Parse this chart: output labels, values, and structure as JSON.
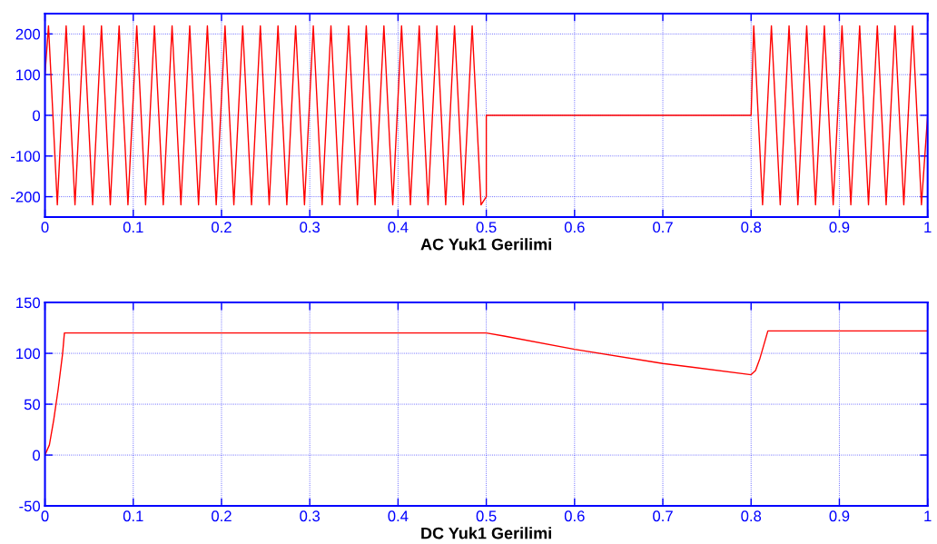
{
  "chart_data": [
    {
      "type": "line",
      "xlabel": "AC Yuk1 Gerilimi",
      "xlim": [
        0,
        1
      ],
      "ylim": [
        -250,
        250
      ],
      "xticks": [
        0,
        0.1,
        0.2,
        0.3,
        0.4,
        0.5,
        0.6,
        0.7,
        0.8,
        0.9,
        1
      ],
      "yticks": [
        -200,
        -100,
        0,
        100,
        200
      ],
      "grid": true,
      "x": [
        0,
        0.004,
        0.009,
        0.014,
        0.019,
        0.024,
        0.029,
        0.034,
        0.039,
        0.044,
        0.049,
        0.054,
        0.059,
        0.064,
        0.069,
        0.074,
        0.079,
        0.084,
        0.089,
        0.094,
        0.099,
        0.104,
        0.109,
        0.114,
        0.119,
        0.124,
        0.129,
        0.134,
        0.139,
        0.144,
        0.149,
        0.154,
        0.159,
        0.164,
        0.169,
        0.174,
        0.179,
        0.184,
        0.189,
        0.194,
        0.199,
        0.204,
        0.209,
        0.214,
        0.219,
        0.224,
        0.229,
        0.234,
        0.239,
        0.244,
        0.249,
        0.254,
        0.259,
        0.264,
        0.269,
        0.274,
        0.279,
        0.284,
        0.289,
        0.294,
        0.299,
        0.304,
        0.309,
        0.314,
        0.319,
        0.324,
        0.329,
        0.334,
        0.339,
        0.344,
        0.349,
        0.354,
        0.359,
        0.364,
        0.369,
        0.374,
        0.379,
        0.384,
        0.389,
        0.394,
        0.399,
        0.404,
        0.409,
        0.414,
        0.419,
        0.424,
        0.429,
        0.434,
        0.439,
        0.444,
        0.449,
        0.454,
        0.459,
        0.464,
        0.469,
        0.474,
        0.479,
        0.484,
        0.489,
        0.494,
        0.5,
        0.5,
        0.8,
        0.803,
        0.808,
        0.813,
        0.818,
        0.823,
        0.828,
        0.833,
        0.838,
        0.843,
        0.848,
        0.853,
        0.858,
        0.863,
        0.868,
        0.873,
        0.878,
        0.883,
        0.888,
        0.893,
        0.898,
        0.903,
        0.908,
        0.913,
        0.918,
        0.923,
        0.928,
        0.933,
        0.938,
        0.943,
        0.948,
        0.953,
        0.958,
        0.963,
        0.968,
        0.973,
        0.978,
        0.983,
        0.988,
        0.993,
        1
      ],
      "series": [
        {
          "color": "#ff0000",
          "values": [
            100,
            220,
            0,
            -220,
            0,
            220,
            0,
            -220,
            0,
            220,
            0,
            -220,
            0,
            220,
            0,
            -220,
            0,
            220,
            0,
            -220,
            0,
            220,
            0,
            -220,
            0,
            220,
            0,
            -220,
            0,
            220,
            0,
            -220,
            0,
            220,
            0,
            -220,
            0,
            220,
            0,
            -220,
            0,
            220,
            0,
            -220,
            0,
            220,
            0,
            -220,
            0,
            220,
            0,
            -220,
            0,
            220,
            0,
            -220,
            0,
            220,
            0,
            -220,
            0,
            220,
            0,
            -220,
            0,
            220,
            0,
            -220,
            0,
            220,
            0,
            -220,
            0,
            220,
            0,
            -220,
            0,
            220,
            0,
            -220,
            0,
            220,
            0,
            -220,
            0,
            220,
            0,
            -220,
            0,
            220,
            0,
            -220,
            0,
            220,
            0,
            -220,
            0,
            220,
            0,
            -220,
            -200,
            0,
            0,
            220,
            0,
            -220,
            0,
            220,
            0,
            -220,
            0,
            220,
            0,
            -220,
            0,
            220,
            0,
            -220,
            0,
            220,
            0,
            -220,
            0,
            220,
            0,
            -220,
            0,
            220,
            0,
            -220,
            0,
            220,
            0,
            -220,
            0,
            220,
            0,
            -220,
            0,
            220,
            0,
            -220,
            0
          ]
        }
      ]
    },
    {
      "type": "line",
      "xlabel": "DC Yuk1 Gerilimi",
      "xlim": [
        0,
        1
      ],
      "ylim": [
        -50,
        150
      ],
      "xticks": [
        0,
        0.1,
        0.2,
        0.3,
        0.4,
        0.5,
        0.6,
        0.7,
        0.8,
        0.9,
        1
      ],
      "yticks": [
        -50,
        0,
        50,
        100,
        150
      ],
      "grid": true,
      "x": [
        0,
        0.005,
        0.01,
        0.015,
        0.02,
        0.022,
        0.1,
        0.5,
        0.52,
        0.6,
        0.7,
        0.8,
        0.805,
        0.81,
        0.815,
        0.819,
        0.9,
        1
      ],
      "series": [
        {
          "color": "#ff0000",
          "values": [
            0,
            10,
            35,
            65,
            100,
            120,
            120,
            120,
            117,
            104,
            90,
            79,
            83,
            95,
            110,
            122,
            122,
            122
          ]
        }
      ]
    }
  ]
}
